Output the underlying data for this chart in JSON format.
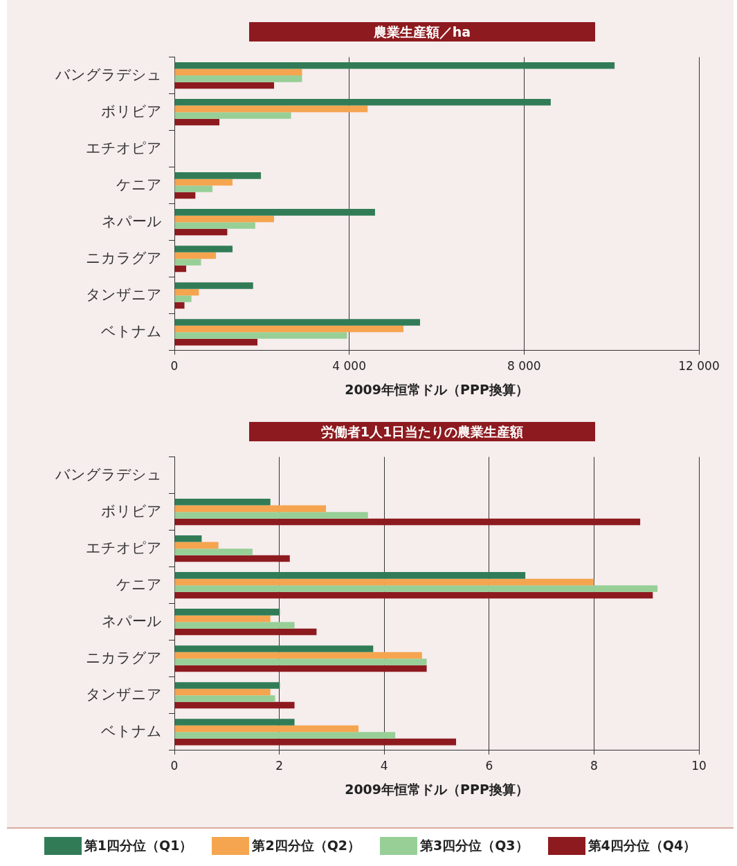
{
  "chart_data": [
    {
      "type": "bar",
      "orientation": "horizontal",
      "title": "農業生産額／ha",
      "xlabel": "2009年恒常ドル（PPP換算）",
      "categories": [
        "バングラデシュ",
        "ボリビア",
        "エチオピア",
        "ケニア",
        "ネパール",
        "ニカラグア",
        "タンザニア",
        "ベトナム"
      ],
      "series": [
        {
          "color": "#317c57",
          "values": [
            10070,
            8610,
            null,
            1980,
            4590,
            1330,
            1800,
            5620
          ]
        },
        {
          "color": "#f5a54f",
          "values": [
            2920,
            4420,
            null,
            1330,
            2280,
            950,
            560,
            5240
          ]
        },
        {
          "color": "#97cf97",
          "values": [
            2920,
            2670,
            null,
            870,
            1850,
            610,
            390,
            3950
          ]
        },
        {
          "color": "#8d1a1e",
          "values": [
            2280,
            1030,
            null,
            480,
            1210,
            270,
            230,
            1900
          ]
        }
      ],
      "xlim": [
        0,
        12000
      ],
      "xticks": [
        0,
        {
          "value": 4000,
          "label": "4 000"
        },
        {
          "value": 8000,
          "label": "8 000"
        },
        {
          "value": 12000,
          "label": "12 000"
        }
      ],
      "grid": "x"
    },
    {
      "type": "bar",
      "orientation": "horizontal",
      "title": "労働者1人1日当たりの農業生産額",
      "xlabel": "2009年恒常ドル（PPP換算）",
      "categories": [
        "バングラデシュ",
        "ボリビア",
        "エチオピア",
        "ケニア",
        "ネパール",
        "ニカラグア",
        "タンザニア",
        "ベトナム"
      ],
      "series": [
        {
          "name": "第1四分位（Q1）",
          "color": "#317c57",
          "values": [
            null,
            1.83,
            0.52,
            6.69,
            2.01,
            3.79,
            2.01,
            2.29
          ]
        },
        {
          "name": "第2四分位（Q2）",
          "color": "#f5a54f",
          "values": [
            null,
            2.89,
            0.84,
            8.0,
            1.83,
            4.72,
            1.83,
            3.51
          ]
        },
        {
          "name": "第3四分位（Q3）",
          "color": "#97cf97",
          "values": [
            null,
            3.69,
            1.49,
            9.21,
            2.29,
            4.81,
            1.92,
            4.21
          ]
        },
        {
          "name": "第4四分位（Q4）",
          "color": "#8d1a1e",
          "values": [
            null,
            8.88,
            2.2,
            9.12,
            2.71,
            4.81,
            2.29,
            5.37
          ]
        }
      ],
      "xlim": [
        0,
        10
      ],
      "xticks": [
        0,
        2,
        4,
        6,
        8,
        10
      ],
      "grid": "x",
      "legend": "bottom"
    }
  ]
}
